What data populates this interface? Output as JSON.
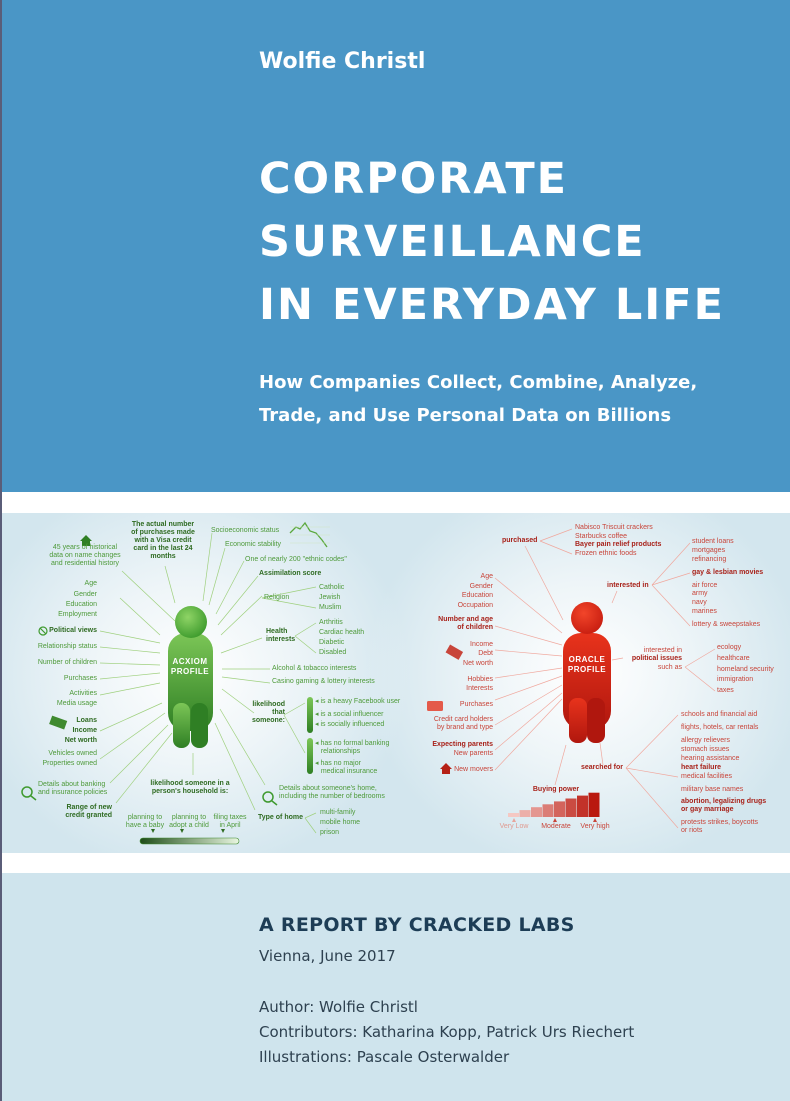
{
  "cover": {
    "author": "Wolfie Christl",
    "title_lines": [
      "CORPORATE",
      "SURVEILLANCE",
      "IN EVERYDAY LIFE"
    ],
    "subtitle_lines": [
      "How Companies Collect, Combine, Analyze,",
      "Trade, and Use Personal Data on Billions"
    ],
    "colors": {
      "top_band": "#4a96c6",
      "bottom_band": "#cfe4ed",
      "acxiom_green": "#3f9a2f",
      "oracle_red": "#cc2a1a"
    }
  },
  "infographic": {
    "acxiom": {
      "figure_label": "ACXIOM\nPROFILE",
      "icons": [
        "house-icon",
        "no-sign-icon",
        "money-icon",
        "magnifier-dollar-icon",
        "magnifier-house-icon",
        "chart-decline-icon"
      ],
      "labels": [
        "45 years of historical\ndata on name changes\nand residential history",
        "The actual number\nof purchases made\nwith a Visa credit\ncard in the last 24\nmonths",
        "Socioeconomic status",
        "Economic stability",
        "One of nearly 200 \"ethnic codes\"",
        "Assimilation score",
        "Religion",
        "Catholic",
        "Jewish",
        "Muslim",
        "Health\ninterests",
        "Arthritis",
        "Cardiac health",
        "Diabetic",
        "Disabled",
        "Alcohol & tobacco interests",
        "Casino gaming & lottery interests",
        "likelihood\nthat\nsomeone:",
        "◂ is a heavy Facebook user",
        "◂ is a social influencer",
        "◂ is socially influenced",
        "◂ has no formal banking\n   relationships",
        "◂ has no major\n   medical insurance",
        "Details about someone's home,\nincluding the number of bedrooms",
        "Type of home",
        "multi-family",
        "mobile home",
        "prison",
        "Age",
        "Gender",
        "Education",
        "Employment",
        "Political views",
        "Relationship status",
        "Number of children",
        "Purchases",
        "Activities",
        "Media usage",
        "Loans",
        "Income",
        "Net worth",
        "Vehicles owned",
        "Properties owned",
        "Details about banking\nand insurance policies",
        "Range of new\ncredit granted",
        "likelihood someone in a\nperson's household is:",
        "planning to\nhave a baby",
        "planning to\nadopt a child",
        "filing taxes\nin April"
      ]
    },
    "oracle": {
      "figure_label": "ORACLE\nPROFILE",
      "icons": [
        "money-icon",
        "credit-card-icon",
        "house-icon"
      ],
      "labels": [
        "purchased",
        "Nabisco Triscuit crackers",
        "Starbucks coffee",
        "Bayer pain relief products",
        "Frozen ethnic foods",
        "Age",
        "Gender",
        "Education",
        "Occupation",
        "Number and age\nof children",
        "Income",
        "Debt",
        "Net worth",
        "Hobbies",
        "Interests",
        "Purchases",
        "Credit card holders\nby brand and type",
        "Expecting parents",
        "New parents",
        "New movers",
        "interested in",
        "student loans",
        "mortgages",
        "refinancing",
        "gay & lesbian movies",
        "air force",
        "army",
        "navy",
        "marines",
        "lottery & sweepstakes",
        "interested in",
        "political issues",
        "such as",
        "ecology",
        "healthcare",
        "homeland security",
        "immigration",
        "taxes",
        "searched for",
        "schools and financial aid",
        "flights, hotels, car rentals",
        "allergy relievers",
        "stomach issues",
        "hearing assistance",
        "heart failure",
        "medical facilities",
        "military base names",
        "abortion, legalizing drugs\nor gay marriage",
        "protests strikes, boycotts\nor riots",
        "Buying power",
        "Very Low",
        "Moderate",
        "Very high"
      ]
    }
  },
  "report": {
    "heading": "A REPORT BY CRACKED LABS",
    "place_date": "Vienna, June 2017",
    "author": "Author: Wolfie Christl",
    "contributors": "Contributors: Katharina Kopp, Patrick Urs Riechert",
    "illustrations": "Illustrations: Pascale Osterwalder"
  }
}
